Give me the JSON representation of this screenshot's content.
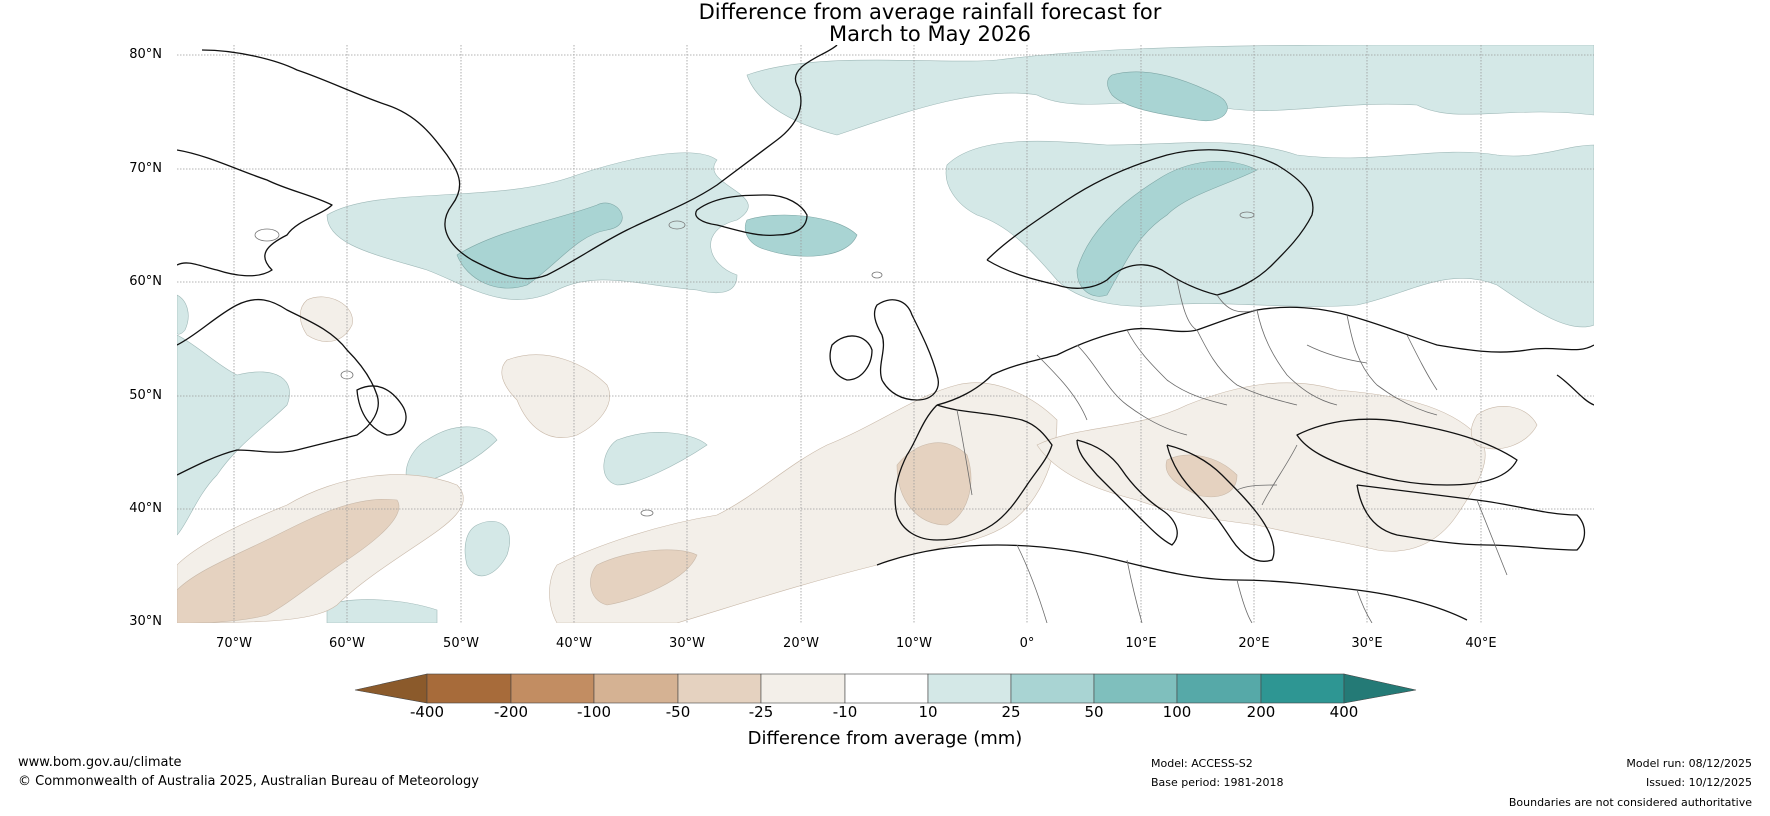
{
  "title": {
    "line1": "Difference from average rainfall forecast for",
    "line2": "March to May 2026"
  },
  "map": {
    "lat_labels": [
      "80°N",
      "70°N",
      "60°N",
      "50°N",
      "40°N",
      "30°N"
    ],
    "lon_labels": [
      "70°W",
      "60°W",
      "50°W",
      "40°W",
      "30°W",
      "20°W",
      "10°W",
      "0°",
      "10°E",
      "20°E",
      "30°E",
      "40°E"
    ],
    "lat_range": [
      30,
      81
    ],
    "lon_range": [
      -75,
      50
    ]
  },
  "legend": {
    "ticks": [
      "-400",
      "-200",
      "-100",
      "-50",
      "-25",
      "-10",
      "10",
      "25",
      "50",
      "100",
      "200",
      "400"
    ],
    "colors": {
      "below_min": "#8b5a2b",
      "bins": [
        "#a76b3a",
        "#c28d62",
        "#d5b293",
        "#e5d2c0",
        "#f3efe9",
        "#ffffff",
        "#d4e8e7",
        "#a9d4d3",
        "#7fbfbd",
        "#56a9a8",
        "#2e9693"
      ],
      "above_max": "#247a76"
    },
    "label": "Difference from average (mm)"
  },
  "footer": {
    "website": "www.bom.gov.au/climate",
    "copyright": "© Commonwealth of Australia 2025, Australian Bureau of Meteorology",
    "model": "Model: ACCESS-S2",
    "base_period": "Base period: 1981-2018",
    "model_run": "Model run: 08/12/2025",
    "issued": "Issued: 10/12/2025",
    "disclaimer": "Boundaries are not considered authoritative"
  }
}
